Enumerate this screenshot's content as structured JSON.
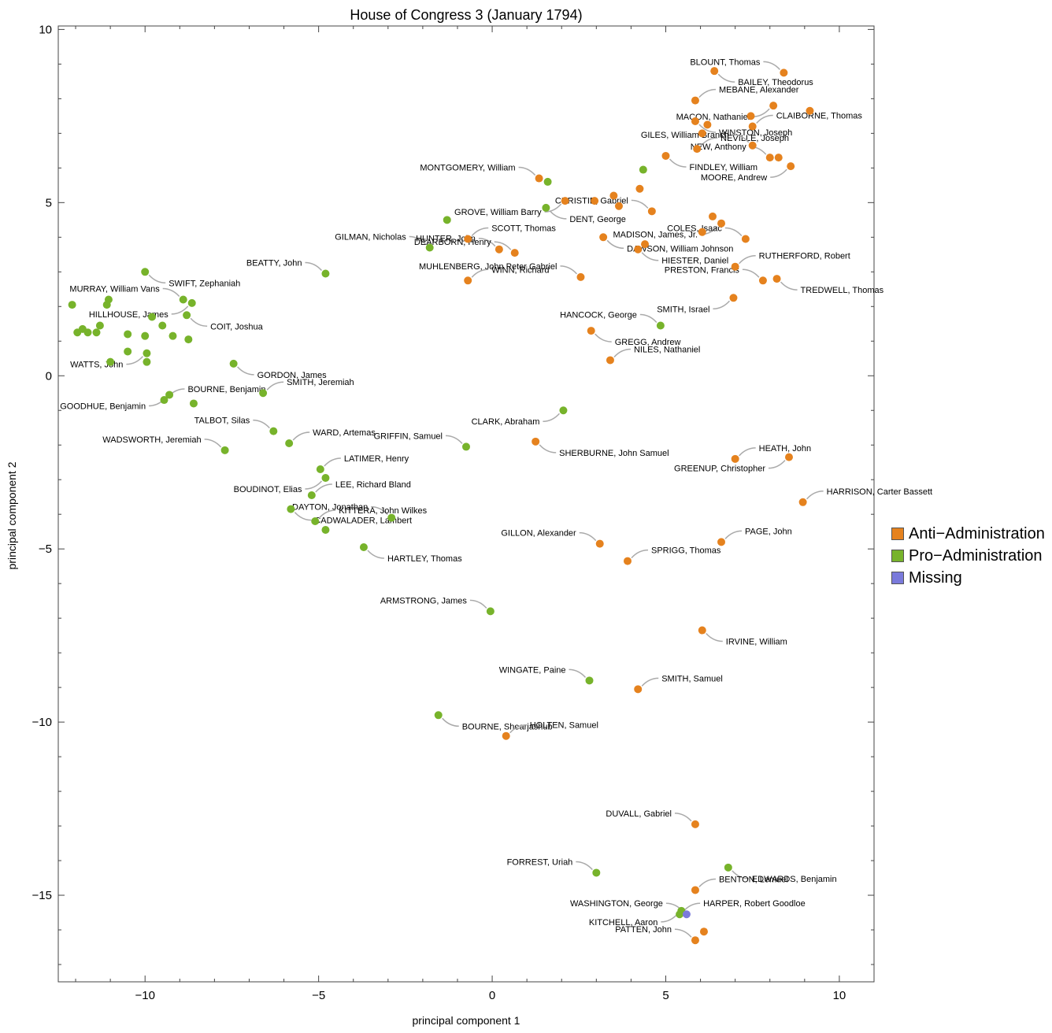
{
  "chart_data": {
    "type": "scatter",
    "title": "House of Congress 3 (January 1794)",
    "xlabel": "principal component 1",
    "ylabel": "principal component 2",
    "xlim": [
      -12.5,
      11
    ],
    "ylim": [
      -17.5,
      10.1
    ],
    "xticks": [
      -10,
      -5,
      0,
      5,
      10
    ],
    "yticks": [
      -15,
      -10,
      -5,
      0,
      5,
      10
    ],
    "grid": false,
    "legend_position": "right",
    "series": [
      {
        "name": "Anti−Administration",
        "color": "#E5821E"
      },
      {
        "name": "Pro−Administration",
        "color": "#77B32B"
      },
      {
        "name": "Missing",
        "color": "#7A7ADB"
      }
    ],
    "points": [
      {
        "x": 6.4,
        "y": 8.8,
        "party": 0,
        "label": "BAILEY, Theodorus"
      },
      {
        "x": 8.4,
        "y": 8.75,
        "party": 0,
        "label": "BLOUNT, Thomas"
      },
      {
        "x": 5.85,
        "y": 7.95,
        "party": 0,
        "label": "MEBANE, Alexander"
      },
      {
        "x": 8.1,
        "y": 7.8,
        "party": 0,
        "label": "MACON, Nathaniel"
      },
      {
        "x": 9.15,
        "y": 7.65,
        "party": 0,
        "label": ""
      },
      {
        "x": 7.45,
        "y": 7.5,
        "party": 0,
        "label": ""
      },
      {
        "x": 5.85,
        "y": 7.35,
        "party": 0,
        "label": "WINSTON, Joseph"
      },
      {
        "x": 6.2,
        "y": 7.25,
        "party": 0,
        "label": ""
      },
      {
        "x": 7.5,
        "y": 7.2,
        "party": 0,
        "label": "CLAIBORNE, Thomas"
      },
      {
        "x": 6.05,
        "y": 7.0,
        "party": 0,
        "label": ""
      },
      {
        "x": 5.9,
        "y": 6.55,
        "party": 0,
        "label": "NEVILLE, Joseph"
      },
      {
        "x": 7.5,
        "y": 6.65,
        "party": 0,
        "label": "GILES, William Branch"
      },
      {
        "x": 5.0,
        "y": 6.35,
        "party": 0,
        "label": "FINDLEY, William"
      },
      {
        "x": 8.0,
        "y": 6.3,
        "party": 0,
        "label": "NEW, Anthony"
      },
      {
        "x": 8.25,
        "y": 6.3,
        "party": 0,
        "label": ""
      },
      {
        "x": 8.6,
        "y": 6.05,
        "party": 0,
        "label": "MOORE, Andrew"
      },
      {
        "x": 4.35,
        "y": 5.95,
        "party": 1,
        "label": ""
      },
      {
        "x": 1.35,
        "y": 5.7,
        "party": 0,
        "label": "MONTGOMERY, William"
      },
      {
        "x": 1.6,
        "y": 5.6,
        "party": 1,
        "label": ""
      },
      {
        "x": 4.25,
        "y": 5.4,
        "party": 0,
        "label": ""
      },
      {
        "x": 3.5,
        "y": 5.2,
        "party": 0,
        "label": ""
      },
      {
        "x": 2.1,
        "y": 5.05,
        "party": 0,
        "label": "GROVE, William Barry"
      },
      {
        "x": 2.95,
        "y": 5.05,
        "party": 0,
        "label": ""
      },
      {
        "x": 3.65,
        "y": 4.9,
        "party": 0,
        "label": ""
      },
      {
        "x": 1.55,
        "y": 4.85,
        "party": 1,
        "label": "DENT, George"
      },
      {
        "x": 4.6,
        "y": 4.75,
        "party": 0,
        "label": "CHRISTIE, Gabriel"
      },
      {
        "x": 6.35,
        "y": 4.6,
        "party": 0,
        "label": ""
      },
      {
        "x": 6.6,
        "y": 4.4,
        "party": 0,
        "label": "MADISON, James, Jr."
      },
      {
        "x": -1.3,
        "y": 4.5,
        "party": 1,
        "label": ""
      },
      {
        "x": 6.05,
        "y": 4.15,
        "party": 0,
        "label": ""
      },
      {
        "x": 3.2,
        "y": 4.0,
        "party": 0,
        "label": "DAWSON, William Johnson"
      },
      {
        "x": 7.3,
        "y": 3.95,
        "party": 0,
        "label": "COLES, Isaac"
      },
      {
        "x": -0.7,
        "y": 3.95,
        "party": 0,
        "label": "SCOTT, Thomas"
      },
      {
        "x": 4.4,
        "y": 3.8,
        "party": 0,
        "label": ""
      },
      {
        "x": -1.8,
        "y": 3.7,
        "party": 1,
        "label": "GILMAN, Nicholas"
      },
      {
        "x": 0.2,
        "y": 3.65,
        "party": 0,
        "label": "HUNTER, John"
      },
      {
        "x": 4.2,
        "y": 3.65,
        "party": 0,
        "label": "HIESTER, Daniel"
      },
      {
        "x": 0.65,
        "y": 3.55,
        "party": 0,
        "label": "DEARBORN, Henry"
      },
      {
        "x": 7.0,
        "y": 3.15,
        "party": 0,
        "label": "RUTHERFORD, Robert"
      },
      {
        "x": -10.0,
        "y": 3.0,
        "party": 1,
        "label": "SWIFT, Zephaniah"
      },
      {
        "x": -4.8,
        "y": 2.95,
        "party": 1,
        "label": "BEATTY, John"
      },
      {
        "x": 2.55,
        "y": 2.85,
        "party": 0,
        "label": "MUHLENBERG, John Peter Gabriel"
      },
      {
        "x": 8.2,
        "y": 2.8,
        "party": 0,
        "label": "TREDWELL, Thomas"
      },
      {
        "x": 7.8,
        "y": 2.75,
        "party": 0,
        "label": "PRESTON, Francis"
      },
      {
        "x": -0.7,
        "y": 2.75,
        "party": 0,
        "label": "WINN, Richard"
      },
      {
        "x": 6.95,
        "y": 2.25,
        "party": 0,
        "label": "SMITH, Israel"
      },
      {
        "x": -8.9,
        "y": 2.2,
        "party": 1,
        "label": "MURRAY, William Vans"
      },
      {
        "x": -11.05,
        "y": 2.2,
        "party": 1,
        "label": ""
      },
      {
        "x": -8.65,
        "y": 2.1,
        "party": 1,
        "label": "HILLHOUSE, James"
      },
      {
        "x": -12.1,
        "y": 2.05,
        "party": 1,
        "label": ""
      },
      {
        "x": -11.1,
        "y": 2.05,
        "party": 1,
        "label": ""
      },
      {
        "x": -8.8,
        "y": 1.75,
        "party": 1,
        "label": "COIT, Joshua"
      },
      {
        "x": -9.8,
        "y": 1.7,
        "party": 1,
        "label": ""
      },
      {
        "x": -11.3,
        "y": 1.45,
        "party": 1,
        "label": ""
      },
      {
        "x": -9.5,
        "y": 1.45,
        "party": 1,
        "label": ""
      },
      {
        "x": 4.85,
        "y": 1.45,
        "party": 1,
        "label": "HANCOCK, George"
      },
      {
        "x": -11.8,
        "y": 1.35,
        "party": 1,
        "label": ""
      },
      {
        "x": -11.95,
        "y": 1.25,
        "party": 1,
        "label": ""
      },
      {
        "x": -11.65,
        "y": 1.25,
        "party": 1,
        "label": ""
      },
      {
        "x": -11.4,
        "y": 1.25,
        "party": 1,
        "label": ""
      },
      {
        "x": 2.85,
        "y": 1.3,
        "party": 0,
        "label": "GREGG, Andrew"
      },
      {
        "x": -10.5,
        "y": 1.2,
        "party": 1,
        "label": ""
      },
      {
        "x": -10.0,
        "y": 1.15,
        "party": 1,
        "label": ""
      },
      {
        "x": -9.2,
        "y": 1.15,
        "party": 1,
        "label": ""
      },
      {
        "x": -8.75,
        "y": 1.05,
        "party": 1,
        "label": ""
      },
      {
        "x": -10.5,
        "y": 0.7,
        "party": 1,
        "label": ""
      },
      {
        "x": -9.95,
        "y": 0.65,
        "party": 1,
        "label": "WATTS, John"
      },
      {
        "x": -11.0,
        "y": 0.4,
        "party": 1,
        "label": ""
      },
      {
        "x": -9.95,
        "y": 0.4,
        "party": 1,
        "label": ""
      },
      {
        "x": -7.45,
        "y": 0.35,
        "party": 1,
        "label": "GORDON, James"
      },
      {
        "x": 3.4,
        "y": 0.45,
        "party": 0,
        "label": "NILES, Nathaniel"
      },
      {
        "x": -6.6,
        "y": -0.5,
        "party": 1,
        "label": "SMITH, Jeremiah"
      },
      {
        "x": -9.3,
        "y": -0.55,
        "party": 1,
        "label": "GOODHUE, Benjamin"
      },
      {
        "x": -9.45,
        "y": -0.7,
        "party": 1,
        "label": "BOURNE, Benjamin"
      },
      {
        "x": -8.6,
        "y": -0.8,
        "party": 1,
        "label": ""
      },
      {
        "x": 2.05,
        "y": -1.0,
        "party": 1,
        "label": "CLARK, Abraham"
      },
      {
        "x": -6.3,
        "y": -1.6,
        "party": 1,
        "label": "TALBOT, Silas"
      },
      {
        "x": -5.85,
        "y": -1.95,
        "party": 1,
        "label": "WARD, Artemas"
      },
      {
        "x": 1.25,
        "y": -1.9,
        "party": 0,
        "label": "SHERBURNE, John Samuel"
      },
      {
        "x": -0.75,
        "y": -2.05,
        "party": 1,
        "label": "GRIFFIN, Samuel"
      },
      {
        "x": -7.7,
        "y": -2.15,
        "party": 1,
        "label": "WADSWORTH, Jeremiah"
      },
      {
        "x": 8.55,
        "y": -2.35,
        "party": 0,
        "label": "GREENUP, Christopher"
      },
      {
        "x": 7.0,
        "y": -2.4,
        "party": 0,
        "label": "HEATH, John"
      },
      {
        "x": -4.95,
        "y": -2.7,
        "party": 1,
        "label": "LATIMER, Henry"
      },
      {
        "x": -4.8,
        "y": -2.95,
        "party": 1,
        "label": "BOUDINOT, Elias"
      },
      {
        "x": -5.2,
        "y": -3.45,
        "party": 1,
        "label": "LEE, Richard Bland"
      },
      {
        "x": 8.95,
        "y": -3.65,
        "party": 0,
        "label": "HARRISON, Carter Bassett"
      },
      {
        "x": -5.8,
        "y": -3.85,
        "party": 1,
        "label": "CADWALADER, Lambert"
      },
      {
        "x": -2.9,
        "y": -4.1,
        "party": 1,
        "label": "DAYTON, Jonathan"
      },
      {
        "x": -5.1,
        "y": -4.2,
        "party": 1,
        "label": "KITTERA, John Wilkes"
      },
      {
        "x": -4.8,
        "y": -4.45,
        "party": 1,
        "label": ""
      },
      {
        "x": 3.1,
        "y": -4.85,
        "party": 0,
        "label": "GILLON, Alexander"
      },
      {
        "x": 6.6,
        "y": -4.8,
        "party": 0,
        "label": "PAGE, John"
      },
      {
        "x": -3.7,
        "y": -4.95,
        "party": 1,
        "label": "HARTLEY, Thomas"
      },
      {
        "x": 3.9,
        "y": -5.35,
        "party": 0,
        "label": "SPRIGG, Thomas"
      },
      {
        "x": -0.05,
        "y": -6.8,
        "party": 1,
        "label": "ARMSTRONG, James"
      },
      {
        "x": 6.05,
        "y": -7.35,
        "party": 0,
        "label": "IRVINE, William"
      },
      {
        "x": 2.8,
        "y": -8.8,
        "party": 1,
        "label": "WINGATE, Paine"
      },
      {
        "x": 4.2,
        "y": -9.05,
        "party": 0,
        "label": "SMITH, Samuel"
      },
      {
        "x": -1.55,
        "y": -9.8,
        "party": 1,
        "label": "BOURNE, Shearjashub"
      },
      {
        "x": 0.4,
        "y": -10.4,
        "party": 0,
        "label": "HOLTEN, Samuel"
      },
      {
        "x": 5.85,
        "y": -12.95,
        "party": 0,
        "label": "DUVALL, Gabriel"
      },
      {
        "x": 6.8,
        "y": -14.2,
        "party": 1,
        "label": "EDWARDS, Benjamin"
      },
      {
        "x": 3.0,
        "y": -14.35,
        "party": 1,
        "label": "FORREST, Uriah"
      },
      {
        "x": 5.85,
        "y": -14.85,
        "party": 0,
        "label": "BENTON, Lemuel"
      },
      {
        "x": 5.45,
        "y": -15.45,
        "party": 1,
        "label": "KITCHELL, Aaron"
      },
      {
        "x": 5.4,
        "y": -15.55,
        "party": 1,
        "label": "HARPER, Robert Goodloe"
      },
      {
        "x": 5.6,
        "y": -15.55,
        "party": 2,
        "label": "WASHINGTON, George"
      },
      {
        "x": 6.1,
        "y": -16.05,
        "party": 0,
        "label": ""
      },
      {
        "x": 5.85,
        "y": -16.3,
        "party": 0,
        "label": "PATTEN, John"
      }
    ]
  }
}
